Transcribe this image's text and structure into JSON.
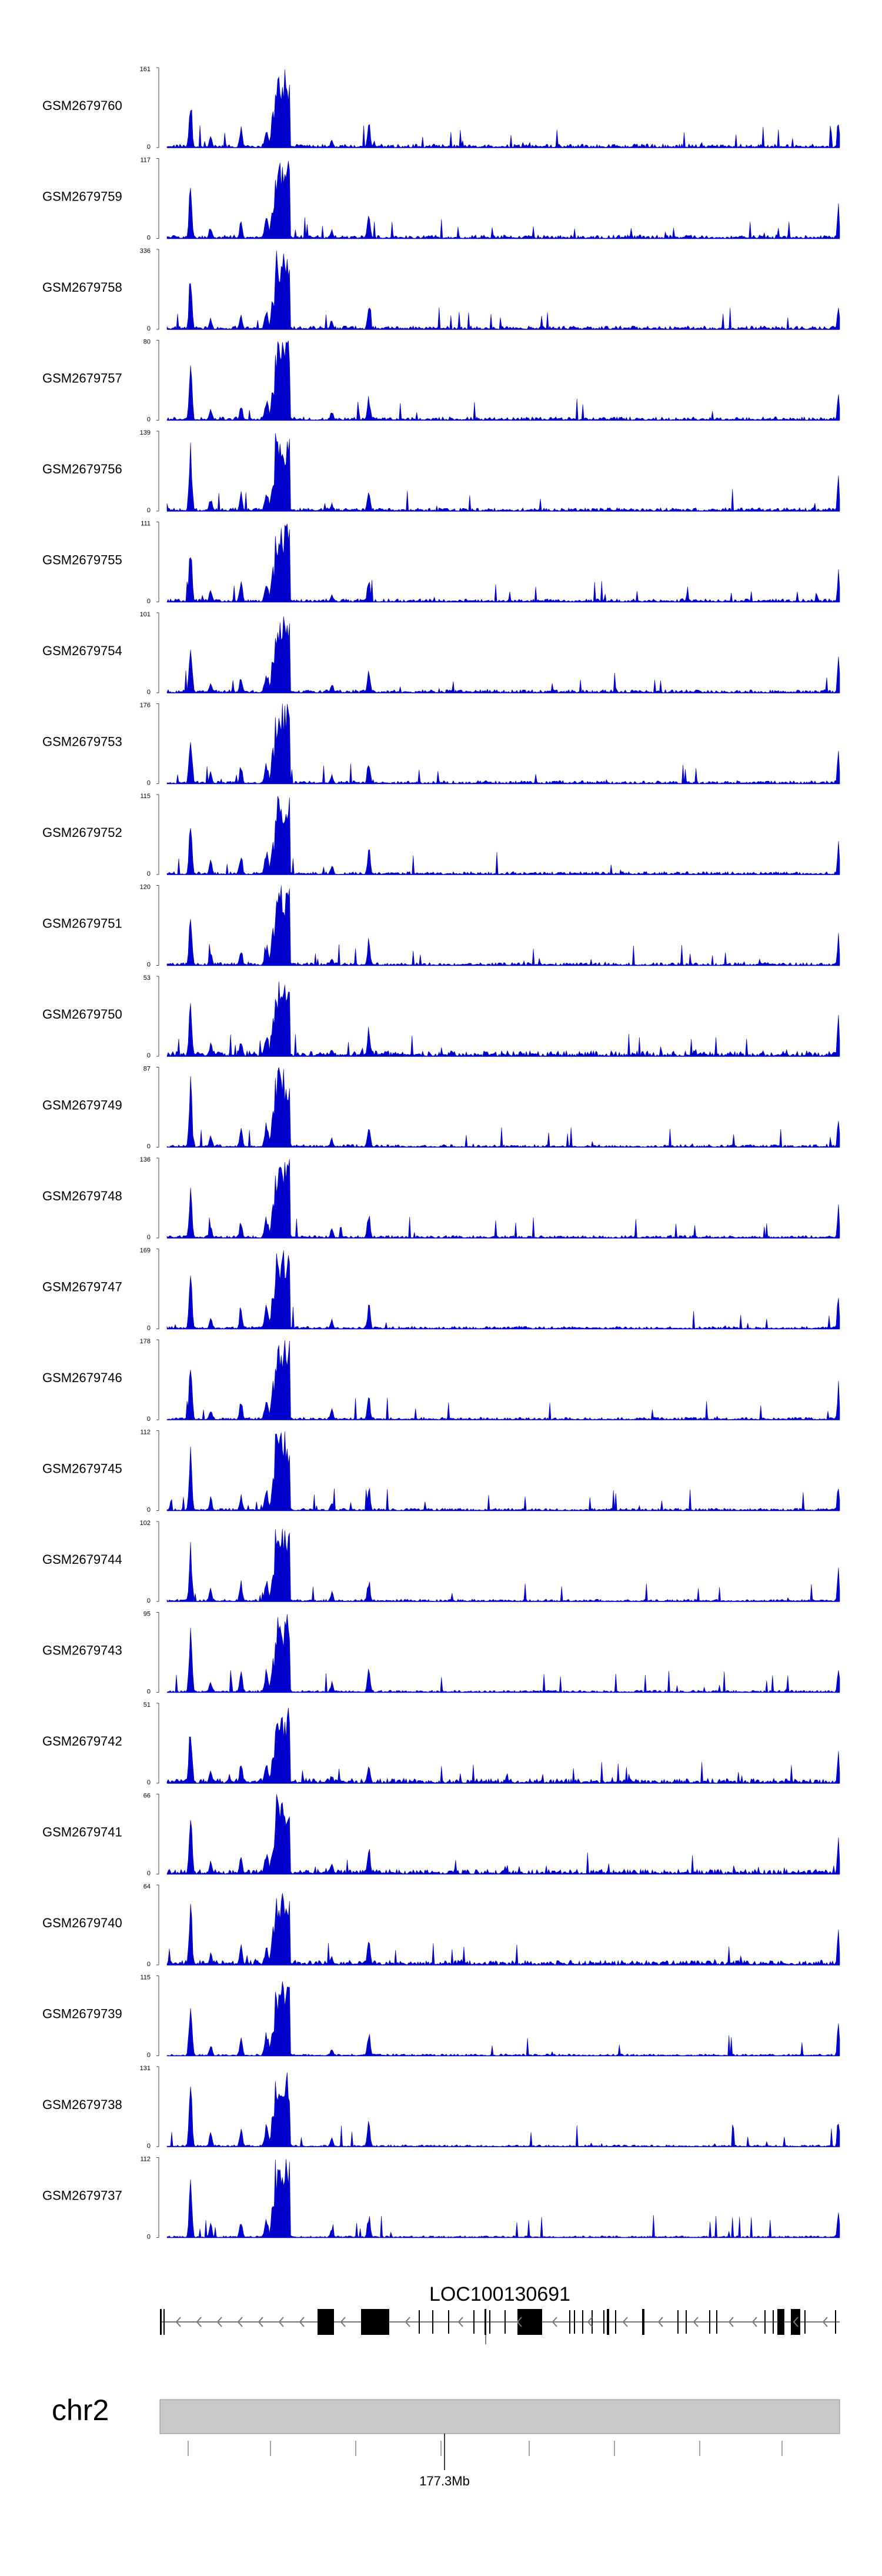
{
  "chart_data": {
    "type": "area",
    "title": "",
    "xlabel": "",
    "ylabel": "",
    "tracks": [
      {
        "name": "GSM2679760",
        "ymax": 161,
        "ymin": 0
      },
      {
        "name": "GSM2679759",
        "ymax": 117,
        "ymin": 0
      },
      {
        "name": "GSM2679758",
        "ymax": 336,
        "ymin": 0
      },
      {
        "name": "GSM2679757",
        "ymax": 80,
        "ymin": 0
      },
      {
        "name": "GSM2679756",
        "ymax": 139,
        "ymin": 0
      },
      {
        "name": "GSM2679755",
        "ymax": 111,
        "ymin": 0
      },
      {
        "name": "GSM2679754",
        "ymax": 101,
        "ymin": 0
      },
      {
        "name": "GSM2679753",
        "ymax": 176,
        "ymin": 0
      },
      {
        "name": "GSM2679752",
        "ymax": 115,
        "ymin": 0
      },
      {
        "name": "GSM2679751",
        "ymax": 120,
        "ymin": 0
      },
      {
        "name": "GSM2679750",
        "ymax": 53,
        "ymin": 0
      },
      {
        "name": "GSM2679749",
        "ymax": 87,
        "ymin": 0
      },
      {
        "name": "GSM2679748",
        "ymax": 136,
        "ymin": 0
      },
      {
        "name": "GSM2679747",
        "ymax": 169,
        "ymin": 0
      },
      {
        "name": "GSM2679746",
        "ymax": 178,
        "ymin": 0
      },
      {
        "name": "GSM2679745",
        "ymax": 112,
        "ymin": 0
      },
      {
        "name": "GSM2679744",
        "ymax": 102,
        "ymin": 0
      },
      {
        "name": "GSM2679743",
        "ymax": 95,
        "ymin": 0
      },
      {
        "name": "GSM2679742",
        "ymax": 51,
        "ymin": 0
      },
      {
        "name": "GSM2679741",
        "ymax": 66,
        "ymin": 0
      },
      {
        "name": "GSM2679740",
        "ymax": 64,
        "ymin": 0
      },
      {
        "name": "GSM2679739",
        "ymax": 115,
        "ymin": 0
      },
      {
        "name": "GSM2679738",
        "ymax": 131,
        "ymin": 0
      },
      {
        "name": "GSM2679737",
        "ymax": 112,
        "ymin": 0
      }
    ],
    "gene": {
      "name": "LOC100130691",
      "strand": "-"
    },
    "chromosome": {
      "name": "chr2",
      "tick_label": "177.3Mb"
    },
    "colors": {
      "signal": "#0000cc",
      "ideogram": "#c8c8c8",
      "axis": "#555555"
    }
  }
}
